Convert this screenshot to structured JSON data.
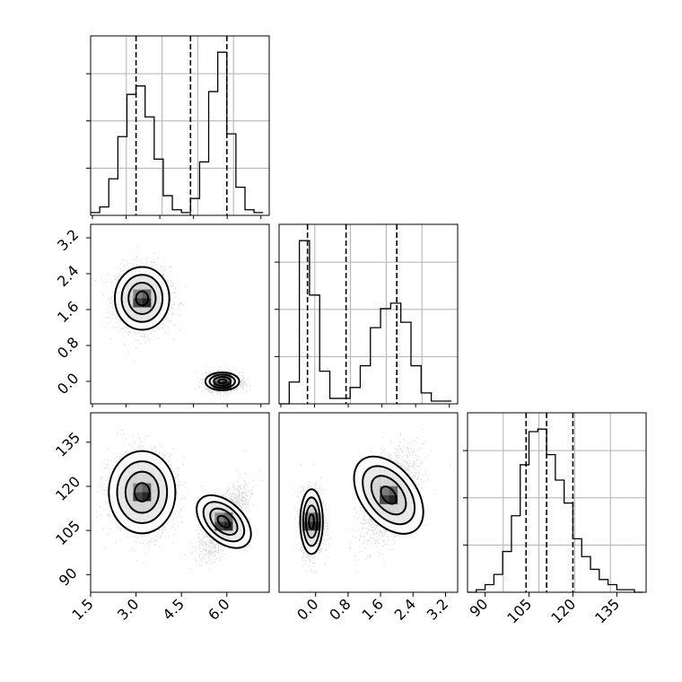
{
  "chart_data": [
    {
      "type": "histogram",
      "panel": "p1-marginal",
      "x_ticks": [],
      "y_ticks": [],
      "xlim": [
        1.5,
        7.4
      ],
      "bins_x": [
        1.5,
        1.8,
        2.1,
        2.4,
        2.7,
        3.0,
        3.3,
        3.6,
        3.9,
        4.2,
        4.5,
        4.8,
        5.1,
        5.4,
        5.7,
        6.0,
        6.3,
        6.6,
        6.9,
        7.2
      ],
      "bins_y": [
        1,
        3,
        13,
        28,
        43,
        46,
        35,
        20,
        7,
        2,
        1,
        6,
        19,
        44,
        58,
        29,
        10,
        2,
        1
      ],
      "quantiles": [
        3.0,
        4.8,
        6.0
      ],
      "grid": true
    },
    {
      "type": "histogram",
      "panel": "p2-marginal",
      "xlim": [
        -0.9,
        3.5
      ],
      "bins_x": [
        -0.9,
        -0.65,
        -0.4,
        -0.15,
        0.1,
        0.35,
        0.6,
        0.85,
        1.1,
        1.35,
        1.6,
        1.85,
        2.1,
        2.35,
        2.6,
        2.85,
        3.1
      ],
      "bins_y": [
        0,
        8,
        60,
        40,
        12,
        2,
        2,
        6,
        14,
        28,
        35,
        37,
        30,
        14,
        4,
        1,
        1
      ],
      "quantiles": [
        -0.2,
        0.75,
        2.0
      ],
      "grid": true
    },
    {
      "type": "histogram",
      "panel": "p3-marginal",
      "x_ticks": [
        "90",
        "105",
        "120",
        "135"
      ],
      "xlim": [
        84,
        145
      ],
      "bins_x": [
        84,
        87,
        90,
        93,
        96,
        99,
        102,
        105,
        108,
        111,
        114,
        117,
        120,
        123,
        126,
        129,
        132,
        135,
        138,
        141,
        144
      ],
      "bins_y": [
        0,
        1,
        3,
        7,
        16,
        30,
        50,
        63,
        64,
        54,
        44,
        35,
        21,
        14,
        9,
        5,
        3,
        1,
        1,
        0
      ],
      "quantiles": [
        104,
        111,
        120
      ],
      "grid": true
    },
    {
      "type": "scatter-density",
      "panel": "p2-vs-p1",
      "y_ticks": [
        "3.2",
        "2.4",
        "1.6",
        "0.8",
        "0.0"
      ],
      "xlim": [
        1.5,
        7.4
      ],
      "ylim": [
        -0.5,
        3.5
      ],
      "clusters": [
        {
          "center_x": 3.2,
          "center_y": 1.85,
          "spread_x": 0.45,
          "spread_y": 0.35,
          "rho": 0
        },
        {
          "center_x": 5.85,
          "center_y": 0.0,
          "spread_x": 0.28,
          "spread_y": 0.1,
          "rho": 0
        }
      ],
      "grid": false
    },
    {
      "type": "scatter-density",
      "panel": "p3-vs-p1",
      "x_ticks": [
        "1.5",
        "3.0",
        "4.5",
        "6.0"
      ],
      "y_ticks": [
        "135",
        "120",
        "105",
        "90"
      ],
      "xlim": [
        1.5,
        7.4
      ],
      "ylim": [
        84,
        145
      ],
      "clusters": [
        {
          "center_x": 3.2,
          "center_y": 118,
          "spread_x": 0.55,
          "spread_y": 7,
          "rho": 0
        },
        {
          "center_x": 5.9,
          "center_y": 108,
          "spread_x": 0.35,
          "spread_y": 5.5,
          "rho": 0.7
        }
      ],
      "grid": false
    },
    {
      "type": "scatter-density",
      "panel": "p3-vs-p2",
      "x_ticks": [
        "0.0",
        "0.8",
        "1.6",
        "2.4",
        "3.2"
      ],
      "xlim": [
        -0.9,
        3.5
      ],
      "ylim": [
        84,
        145
      ],
      "clusters": [
        {
          "center_x": -0.1,
          "center_y": 108,
          "spread_x": 0.14,
          "spread_y": 5.5,
          "rho": 0
        },
        {
          "center_x": 1.8,
          "center_y": 117,
          "spread_x": 0.35,
          "spread_y": 7.5,
          "rho": 0.5
        }
      ],
      "grid": false
    }
  ],
  "colors": {
    "points": "#000000",
    "lines": "#000000",
    "grid": "#b0b0b0"
  }
}
